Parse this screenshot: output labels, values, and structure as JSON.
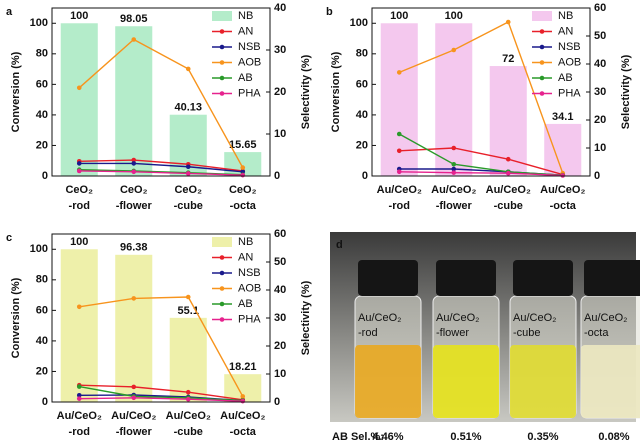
{
  "chart_data": [
    {
      "type": "bar",
      "panel": "a",
      "y_label": "Conversion (%)",
      "y2_label": "Selectivity (%)",
      "categories": [
        [
          "CeO₂",
          "-rod"
        ],
        [
          "CeO₂",
          "-flower"
        ],
        [
          "CeO₂",
          "-cube"
        ],
        [
          "CeO₂",
          "-octa"
        ]
      ],
      "ylim": [
        0,
        110
      ],
      "yticks": [
        0,
        20,
        40,
        60,
        80,
        100
      ],
      "y2lim": [
        0,
        40
      ],
      "y2ticks": [
        0,
        10,
        20,
        30,
        40
      ],
      "series": [
        {
          "name": "NB",
          "color": "#b4ecca",
          "values": [
            100,
            98.05,
            40.13,
            15.65
          ]
        },
        {
          "name": "AN",
          "color": "#e8202a",
          "axis": "y2",
          "values": [
            3.5,
            3.8,
            2.8,
            1.2
          ]
        },
        {
          "name": "NSB",
          "color": "#1a1a8c",
          "axis": "y2",
          "values": [
            3,
            3,
            2.2,
            1
          ]
        },
        {
          "name": "AOB",
          "color": "#f7941d",
          "axis": "y2",
          "values": [
            21,
            32.5,
            25.5,
            2
          ]
        },
        {
          "name": "AB",
          "color": "#2a9a2a",
          "axis": "y2",
          "values": [
            1.5,
            1.2,
            0.8,
            0.3
          ]
        },
        {
          "name": "PHA",
          "color": "#e6228e",
          "axis": "y2",
          "values": [
            1.2,
            1,
            0.6,
            0.2
          ]
        }
      ]
    },
    {
      "type": "bar",
      "panel": "b",
      "y_label": "Conversion (%)",
      "y2_label": "Selectivity (%)",
      "categories": [
        [
          "Au/CeO₂",
          "-rod"
        ],
        [
          "Au/CeO₂",
          "-flower"
        ],
        [
          "Au/CeO₂",
          "-cube"
        ],
        [
          "Au/CeO₂",
          "-octa"
        ]
      ],
      "ylim": [
        0,
        110
      ],
      "yticks": [
        0,
        20,
        40,
        60,
        80,
        100
      ],
      "y2lim": [
        0,
        60
      ],
      "y2ticks": [
        0,
        10,
        20,
        30,
        40,
        50,
        60
      ],
      "series": [
        {
          "name": "NB",
          "color": "#f4c8ee",
          "values": [
            100,
            100,
            72,
            34.1
          ]
        },
        {
          "name": "AN",
          "color": "#e8202a",
          "axis": "y2",
          "values": [
            9,
            10,
            6,
            0.5
          ]
        },
        {
          "name": "NSB",
          "color": "#1a1a8c",
          "axis": "y2",
          "values": [
            2.5,
            2.5,
            1.5,
            0.3
          ]
        },
        {
          "name": "AOB",
          "color": "#f7941d",
          "axis": "y2",
          "values": [
            37,
            45,
            55,
            1
          ]
        },
        {
          "name": "AB",
          "color": "#2a9a2a",
          "axis": "y2",
          "values": [
            15,
            4.2,
            1.5,
            0.3
          ]
        },
        {
          "name": "PHA",
          "color": "#e6228e",
          "axis": "y2",
          "values": [
            1.5,
            1.2,
            1,
            0.2
          ]
        }
      ]
    },
    {
      "type": "bar",
      "panel": "c",
      "y_label": "Conversion (%)",
      "y2_label": "Selectivity (%)",
      "categories": [
        [
          "Au/CeO₂",
          "-rod"
        ],
        [
          "Au/CeO₂",
          "-flower"
        ],
        [
          "Au/CeO₂",
          "-cube"
        ],
        [
          "Au/CeO₂",
          "-octa"
        ]
      ],
      "ylim": [
        0,
        110
      ],
      "yticks": [
        0,
        20,
        40,
        60,
        80,
        100
      ],
      "y2lim": [
        0,
        60
      ],
      "y2ticks": [
        0,
        10,
        20,
        30,
        40,
        50,
        60
      ],
      "series": [
        {
          "name": "NB",
          "color": "#eef0aa",
          "values": [
            100,
            96.38,
            55.1,
            18.21
          ]
        },
        {
          "name": "AN",
          "color": "#e8202a",
          "axis": "y2",
          "values": [
            6,
            5.4,
            3.5,
            0.8
          ]
        },
        {
          "name": "NSB",
          "color": "#1a1a8c",
          "axis": "y2",
          "values": [
            2.4,
            2.5,
            1.8,
            0.5
          ]
        },
        {
          "name": "AOB",
          "color": "#f7941d",
          "axis": "y2",
          "values": [
            34,
            37,
            37.5,
            2
          ]
        },
        {
          "name": "AB",
          "color": "#2a9a2a",
          "axis": "y2",
          "values": [
            5.5,
            2,
            1.5,
            0.5
          ]
        },
        {
          "name": "PHA",
          "color": "#e6228e",
          "axis": "y2",
          "values": [
            1.2,
            1.5,
            1,
            0.3
          ]
        }
      ]
    }
  ],
  "photo": {
    "panel": "d",
    "vial_labels": [
      [
        "Au/CeO₂",
        "-rod"
      ],
      [
        "Au/CeO₂",
        "-flower"
      ],
      [
        "Au/CeO₂",
        "-cube"
      ],
      [
        "Au/CeO₂",
        "-octa"
      ]
    ],
    "label_colors": [
      "#e8202a",
      "#2233cc",
      "#222222",
      "#e6228e"
    ],
    "caption": "AB Sel.%:",
    "values": [
      "4.46%",
      "0.51%",
      "0.35%",
      "0.08%"
    ]
  }
}
